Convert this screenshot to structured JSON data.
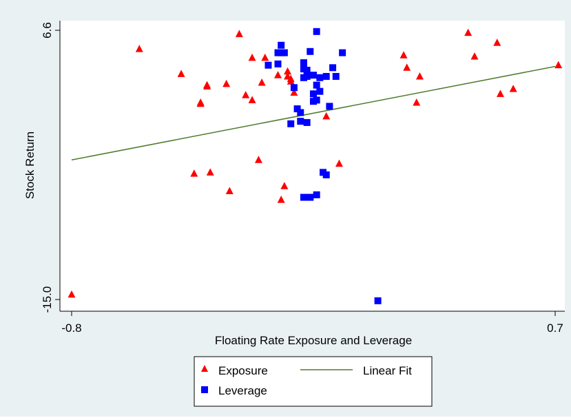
{
  "chart_data": {
    "type": "scatter",
    "title": "",
    "xlabel": "Floating Rate Exposure and Leverage",
    "ylabel": "Stock Return",
    "xlim": [
      -0.8,
      0.7
    ],
    "ylim": [
      -15.0,
      6.6
    ],
    "xticks": [
      "-0.8",
      "0.7"
    ],
    "yticks": [
      "-15.0",
      "6.6"
    ],
    "grid": false,
    "legend_position": "bottom",
    "colors": {
      "exposure": "#ff0000",
      "leverage": "#0000ff",
      "fit": "#4e7a2a",
      "background": "#eaf1f3"
    },
    "legend": {
      "exposure": "Exposure",
      "fit": "Linear Fit",
      "leverage": "Leverage"
    },
    "series": [
      {
        "name": "Exposure",
        "marker": "triangle",
        "points": [
          [
            -0.8,
            -14.6
          ],
          [
            -0.59,
            5.1
          ],
          [
            -0.46,
            3.1
          ],
          [
            -0.42,
            -4.9
          ],
          [
            -0.4,
            0.8
          ],
          [
            -0.4,
            0.7
          ],
          [
            -0.38,
            2.2
          ],
          [
            -0.38,
            2.1
          ],
          [
            -0.37,
            -4.8
          ],
          [
            -0.32,
            2.3
          ],
          [
            -0.31,
            -6.3
          ],
          [
            -0.28,
            6.3
          ],
          [
            -0.26,
            1.4
          ],
          [
            -0.24,
            1.0
          ],
          [
            -0.24,
            4.4
          ],
          [
            -0.22,
            -3.8
          ],
          [
            -0.21,
            2.4
          ],
          [
            -0.2,
            4.4
          ],
          [
            -0.15,
            -7.0
          ],
          [
            -0.16,
            3.0
          ],
          [
            -0.14,
            -5.9
          ],
          [
            -0.13,
            2.9
          ],
          [
            -0.13,
            3.3
          ],
          [
            -0.12,
            2.7
          ],
          [
            -0.12,
            2.5
          ],
          [
            -0.11,
            1.6
          ],
          [
            -0.05,
            1.5
          ],
          [
            -0.01,
            -0.3
          ],
          [
            0.03,
            -4.1
          ],
          [
            0.23,
            4.6
          ],
          [
            0.24,
            3.6
          ],
          [
            0.28,
            2.9
          ],
          [
            0.27,
            0.8
          ],
          [
            0.43,
            6.4
          ],
          [
            0.45,
            4.5
          ],
          [
            0.52,
            5.6
          ],
          [
            0.53,
            1.5
          ],
          [
            0.57,
            1.9
          ],
          [
            0.71,
            3.8
          ]
        ]
      },
      {
        "name": "Leverage",
        "marker": "square",
        "points": [
          [
            -0.19,
            3.8
          ],
          [
            -0.16,
            3.9
          ],
          [
            -0.16,
            4.8
          ],
          [
            -0.15,
            4.8
          ],
          [
            -0.15,
            5.4
          ],
          [
            -0.14,
            4.8
          ],
          [
            -0.12,
            -0.9
          ],
          [
            -0.11,
            2.0
          ],
          [
            -0.1,
            0.3
          ],
          [
            -0.09,
            0.0
          ],
          [
            -0.09,
            -0.7
          ],
          [
            -0.08,
            4.0
          ],
          [
            -0.08,
            3.5
          ],
          [
            -0.08,
            -6.8
          ],
          [
            -0.08,
            2.8
          ],
          [
            -0.07,
            2.9
          ],
          [
            -0.07,
            3.4
          ],
          [
            -0.07,
            -0.8
          ],
          [
            -0.06,
            4.9
          ],
          [
            -0.06,
            -6.8
          ],
          [
            -0.05,
            3.0
          ],
          [
            -0.05,
            1.5
          ],
          [
            -0.05,
            0.9
          ],
          [
            -0.04,
            6.5
          ],
          [
            -0.04,
            2.2
          ],
          [
            -0.04,
            1.0
          ],
          [
            -0.04,
            -6.6
          ],
          [
            -0.03,
            2.8
          ],
          [
            -0.03,
            1.7
          ],
          [
            -0.02,
            -4.8
          ],
          [
            -0.01,
            2.9
          ],
          [
            -0.01,
            -5.0
          ],
          [
            0.0,
            0.5
          ],
          [
            0.01,
            3.6
          ],
          [
            0.02,
            2.9
          ],
          [
            0.04,
            4.8
          ],
          [
            0.15,
            -15.1
          ]
        ]
      },
      {
        "name": "Linear Fit",
        "marker": "line",
        "points": [
          [
            -0.8,
            -3.8
          ],
          [
            0.7,
            3.7
          ]
        ]
      }
    ]
  }
}
